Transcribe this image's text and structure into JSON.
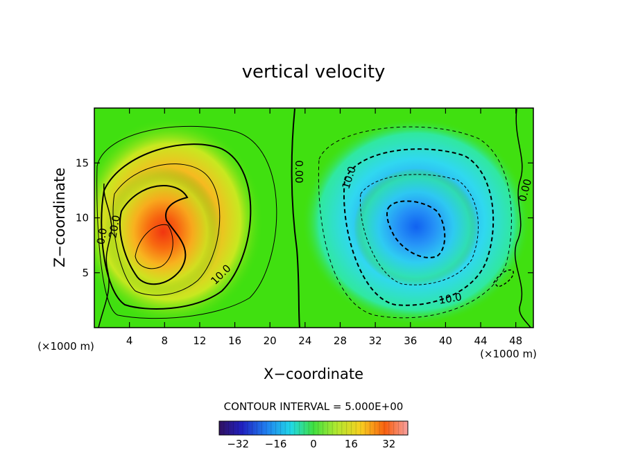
{
  "chart_data": {
    "type": "heatmap",
    "title": "vertical velocity",
    "xlabel": "X−coordinate",
    "ylabel": "Z−coordinate",
    "x_unit_label": "(×1000 m)",
    "y_unit_label": "(×1000 m)",
    "xlim": [
      0,
      50
    ],
    "ylim": [
      0,
      20
    ],
    "x_ticks": [
      "4",
      "8",
      "12",
      "16",
      "20",
      "24",
      "28",
      "32",
      "36",
      "40",
      "44",
      "48"
    ],
    "y_ticks": [
      "5",
      "10",
      "15"
    ],
    "contour_interval_text": "CONTOUR INTERVAL = 5.000E+00",
    "contour_labels": [
      "0.0",
      "20.0",
      "10.0",
      "0.00",
      "10.0",
      "10.0",
      "0.00"
    ],
    "colorbar": {
      "range": [
        -40,
        40
      ],
      "ticks": [
        "−32",
        "−16",
        "0",
        "16",
        "32"
      ]
    },
    "features": [
      {
        "sign": "positive",
        "center_x": 7,
        "center_z": 8,
        "peak": 30
      },
      {
        "sign": "negative",
        "center_x": 36,
        "center_z": 9,
        "peak": -22
      }
    ]
  }
}
